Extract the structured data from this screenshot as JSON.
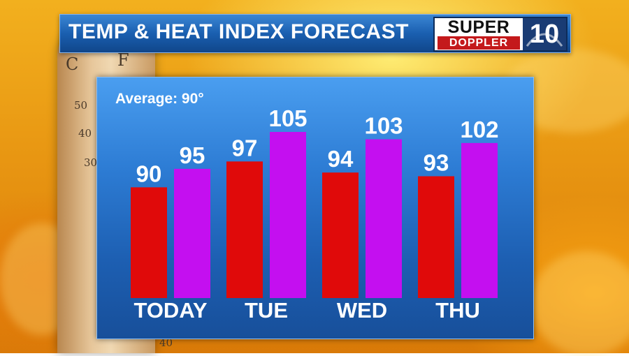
{
  "header": {
    "title": "TEMP & HEAT INDEX FORECAST",
    "logo": {
      "super": "SUPER",
      "doppler": "DOPPLER",
      "channel": "10"
    }
  },
  "background": {
    "thermometer_scale": [
      "C",
      "F",
      "50",
      "40",
      "30",
      "40"
    ]
  },
  "chart_data": {
    "type": "bar",
    "annotation": "Average: 90°",
    "categories": [
      "TODAY",
      "TUE",
      "WED",
      "THU"
    ],
    "series": [
      {
        "values": [
          90,
          97,
          94,
          93
        ],
        "color": "#e00a0a"
      },
      {
        "values": [
          95,
          105,
          103,
          102
        ],
        "color": "#c40ff0"
      }
    ],
    "ylim": [
      60,
      110
    ],
    "grid": false,
    "legend": "none"
  }
}
